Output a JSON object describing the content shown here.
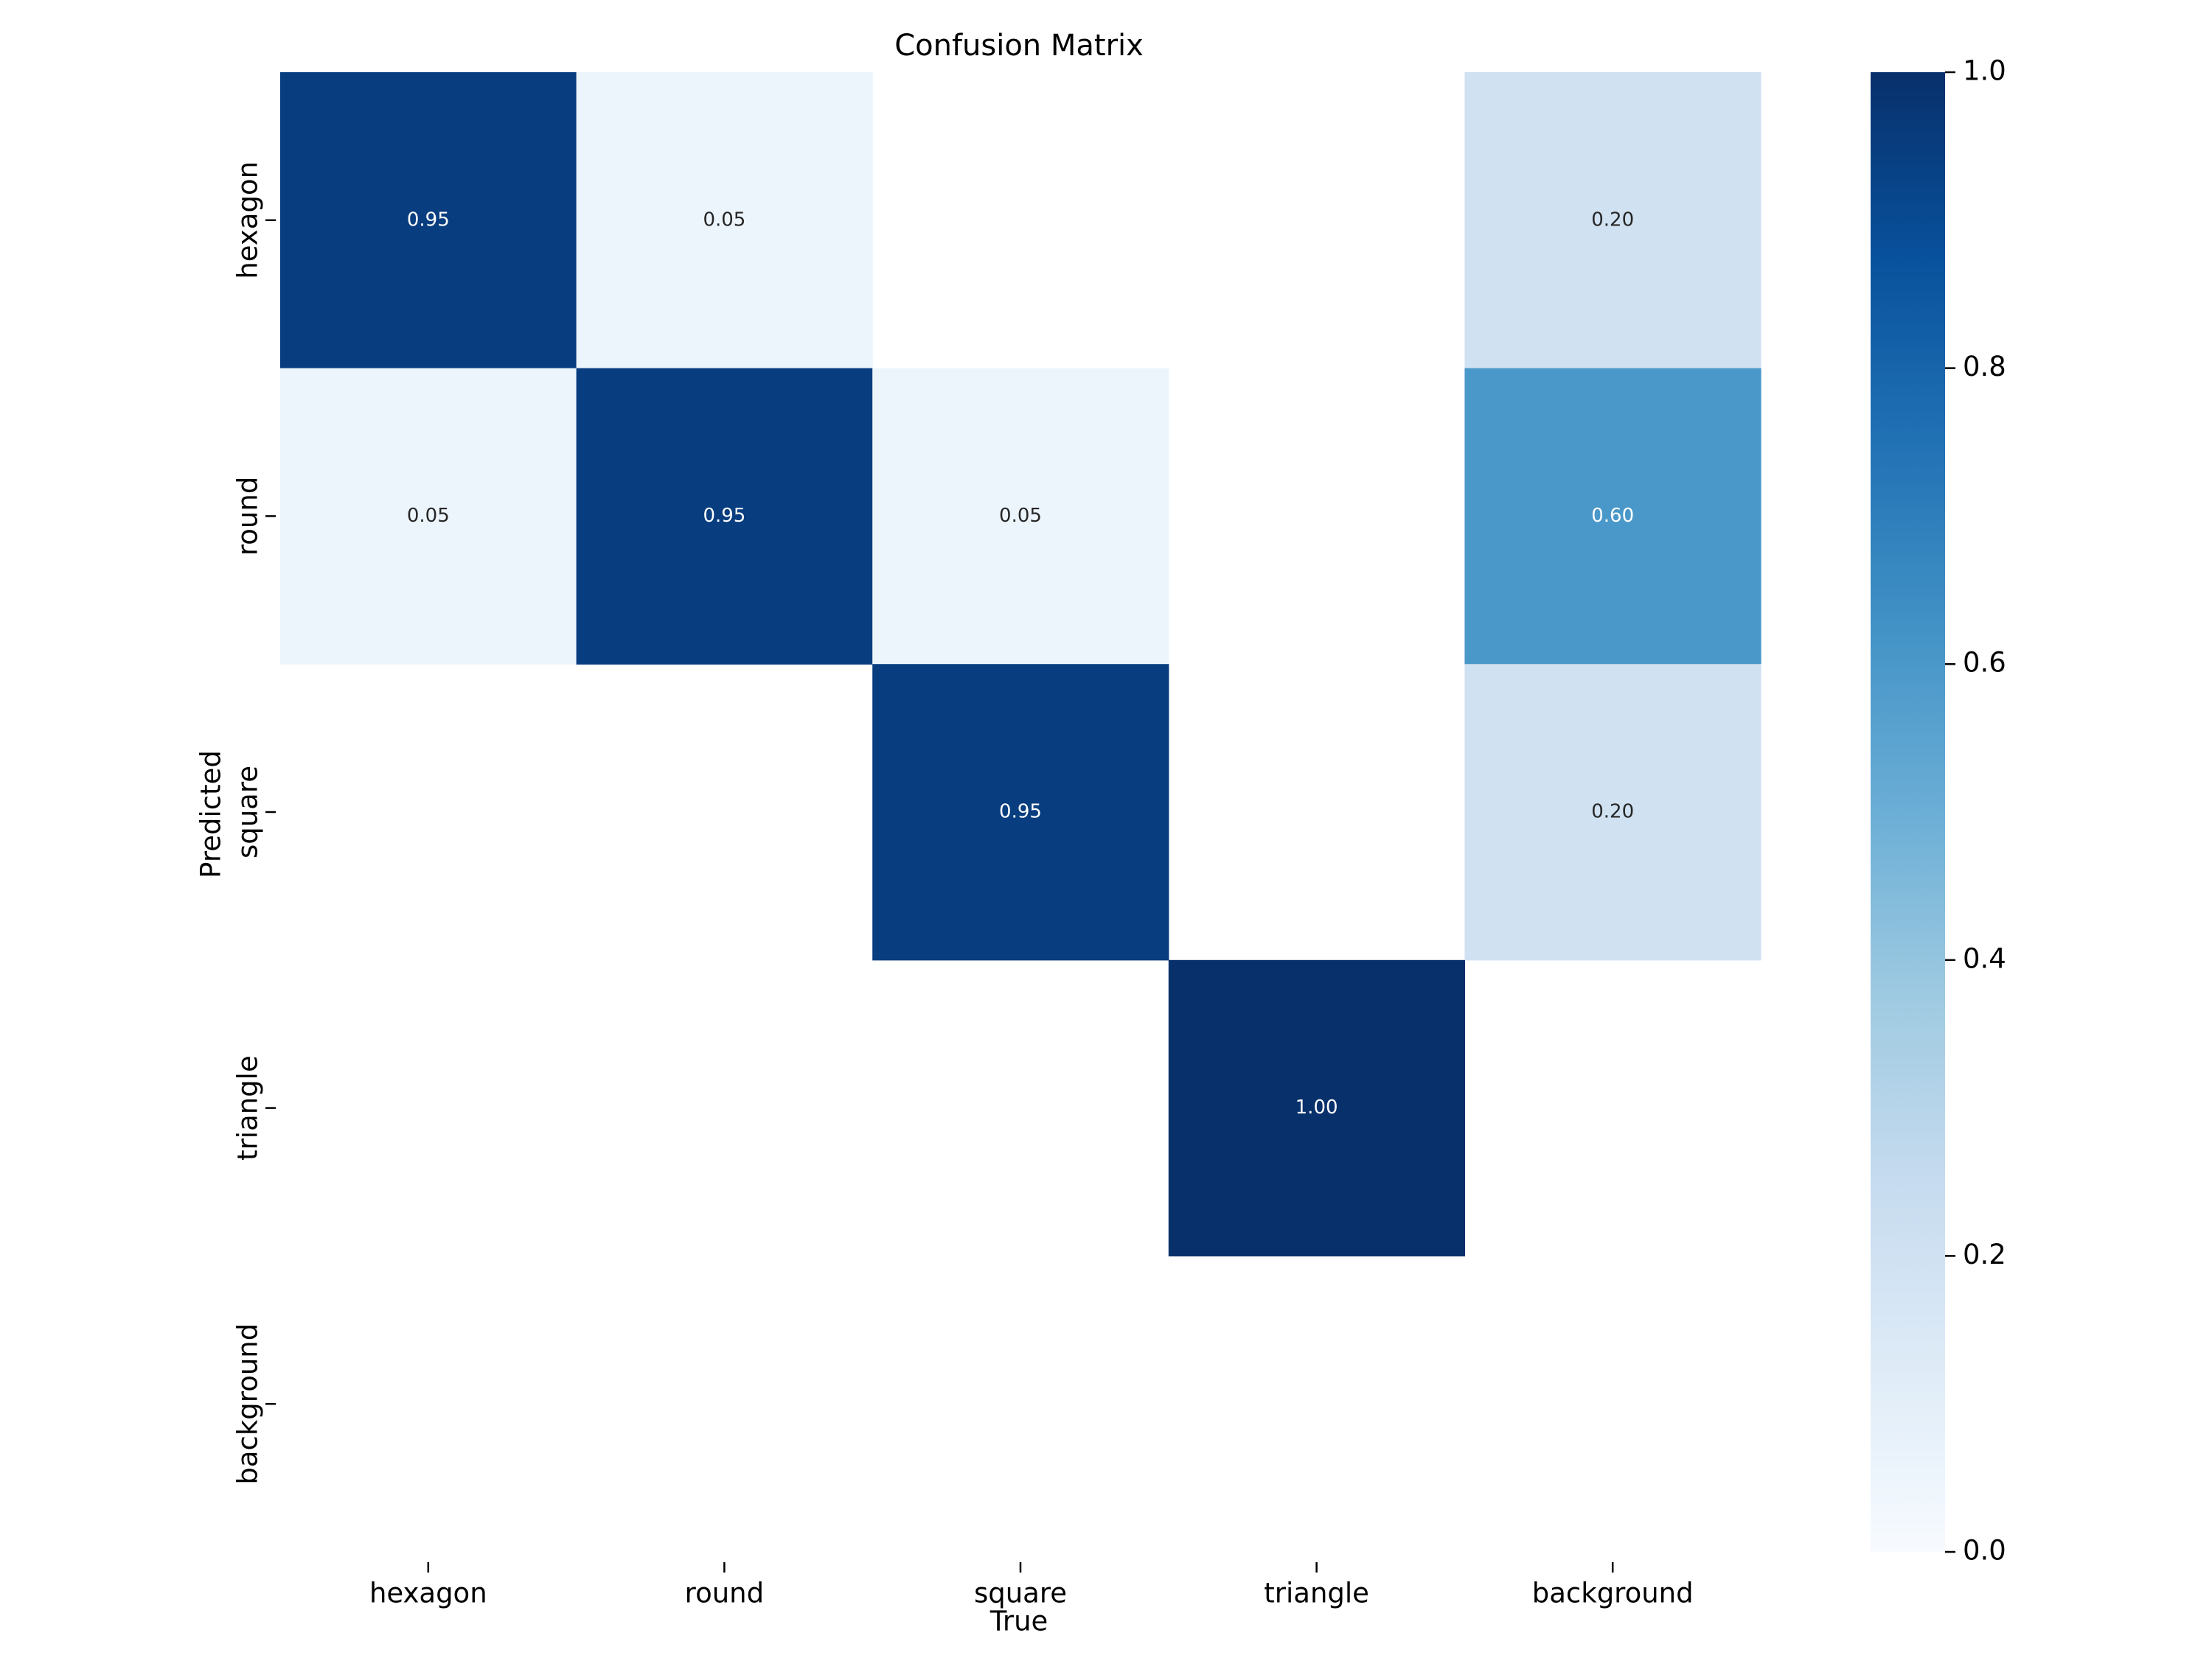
{
  "chart_data": {
    "type": "heatmap",
    "title": "Confusion Matrix",
    "xlabel": "True",
    "ylabel": "Predicted",
    "x_categories": [
      "hexagon",
      "round",
      "square",
      "triangle",
      "background"
    ],
    "y_categories": [
      "hexagon",
      "round",
      "square",
      "triangle",
      "background"
    ],
    "values": [
      [
        0.95,
        0.05,
        null,
        null,
        0.2
      ],
      [
        0.05,
        0.95,
        0.05,
        null,
        0.6
      ],
      [
        null,
        null,
        0.95,
        null,
        0.2
      ],
      [
        null,
        null,
        null,
        1.0,
        null
      ],
      [
        null,
        null,
        null,
        null,
        null
      ]
    ],
    "value_format": "0.00",
    "colormap": "Blues",
    "colorbar": {
      "range": [
        0.0,
        1.0
      ],
      "ticks": [
        "0.0",
        "0.2",
        "0.4",
        "0.6",
        "0.8",
        "1.0"
      ]
    },
    "colorscale_stops": [
      "#f7fbff",
      "#deebf7",
      "#c6dbef",
      "#9ecae1",
      "#6baed6",
      "#4292c6",
      "#2171b5",
      "#08519c",
      "#08306b"
    ]
  }
}
